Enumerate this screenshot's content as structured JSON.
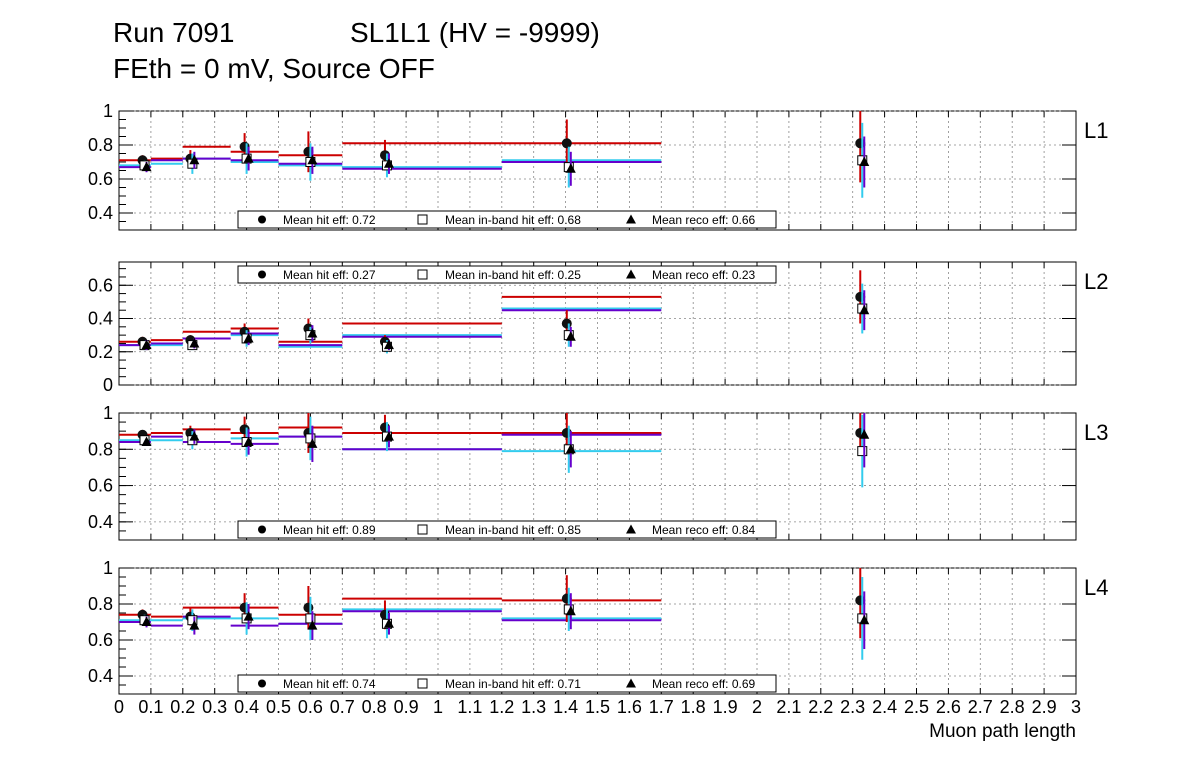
{
  "title_line1_left": "Run 7091",
  "title_line1_right": "SL1L1 (HV = -9999)",
  "title_line2": "FEth = 0 mV, Source OFF",
  "xaxis_title": "Muon path length",
  "x_tick_labels": [
    "0",
    "0.1",
    "0.2",
    "0.3",
    "0.4",
    "0.5",
    "0.6",
    "0.7",
    "0.8",
    "0.9",
    "1",
    "1.1",
    "1.2",
    "1.3",
    "1.4",
    "1.5",
    "1.6",
    "1.7",
    "1.8",
    "1.9",
    "2",
    "2.1",
    "2.2",
    "2.3",
    "2.4",
    "2.5",
    "2.6",
    "2.7",
    "2.8",
    "2.9",
    "3"
  ],
  "colors": {
    "hit": "#cc0000",
    "inband": "#33ccee",
    "reco": "#6600cc",
    "frame": "#000000",
    "grid": "#888888"
  },
  "legend_labels": {
    "hit": "Mean hit  eff: ",
    "inband": "Mean in-band hit eff: ",
    "reco": "Mean reco eff: "
  },
  "chart_data": [
    {
      "type": "scatter",
      "label": "L1",
      "xlim": [
        0,
        3
      ],
      "ylim": [
        0.3,
        1.0
      ],
      "y_ticks": [
        0.4,
        0.6,
        0.8,
        1
      ],
      "y_tick_labels": [
        "0.4",
        "0.6",
        "0.8",
        "1"
      ],
      "legend": {
        "position": "bottom",
        "hit": "0.72",
        "inband": "0.68",
        "reco": "0.66"
      },
      "bins": [
        0,
        0.1,
        0.2,
        0.35,
        0.5,
        0.7,
        1.2,
        1.7,
        3.0
      ],
      "points_x": [
        0.08,
        0.23,
        0.4,
        0.6,
        0.84,
        1.41,
        2.33
      ],
      "series": [
        {
          "key": "hit",
          "marker": "circle",
          "values": [
            0.71,
            0.72,
            0.79,
            0.76,
            0.74,
            0.81,
            0.81
          ],
          "errors": [
            0.03,
            0.05,
            0.08,
            0.12,
            0.09,
            0.14,
            0.23
          ]
        },
        {
          "key": "inband",
          "marker": "square",
          "values": [
            0.68,
            0.69,
            0.72,
            0.7,
            0.68,
            0.67,
            0.71
          ],
          "errors": [
            0.03,
            0.06,
            0.09,
            0.11,
            0.07,
            0.12,
            0.22
          ]
        },
        {
          "key": "reco",
          "marker": "triangle",
          "values": [
            0.67,
            0.71,
            0.72,
            0.71,
            0.69,
            0.66,
            0.7
          ],
          "errors": [
            0.03,
            0.05,
            0.07,
            0.08,
            0.06,
            0.1,
            0.15
          ]
        }
      ]
    },
    {
      "type": "scatter",
      "label": "L2",
      "xlim": [
        0,
        3
      ],
      "ylim": [
        0,
        0.74
      ],
      "y_ticks": [
        0,
        0.2,
        0.4,
        0.6
      ],
      "y_tick_labels": [
        "0",
        "0.2",
        "0.4",
        "0.6"
      ],
      "legend": {
        "position": "top",
        "hit": "0.27",
        "inband": "0.25",
        "reco": "0.23"
      },
      "bins": [
        0,
        0.1,
        0.2,
        0.35,
        0.5,
        0.7,
        1.2,
        1.7,
        3.0
      ],
      "points_x": [
        0.08,
        0.23,
        0.4,
        0.6,
        0.84,
        1.41,
        2.33
      ],
      "series": [
        {
          "key": "hit",
          "marker": "circle",
          "values": [
            0.26,
            0.27,
            0.32,
            0.34,
            0.26,
            0.37,
            0.53
          ],
          "errors": [
            0.03,
            0.03,
            0.05,
            0.06,
            0.04,
            0.08,
            0.16
          ]
        },
        {
          "key": "inband",
          "marker": "square",
          "values": [
            0.24,
            0.24,
            0.28,
            0.3,
            0.23,
            0.3,
            0.46
          ],
          "errors": [
            0.03,
            0.03,
            0.05,
            0.05,
            0.04,
            0.07,
            0.15
          ]
        },
        {
          "key": "reco",
          "marker": "triangle",
          "values": [
            0.24,
            0.25,
            0.28,
            0.31,
            0.24,
            0.29,
            0.45
          ],
          "errors": [
            0.03,
            0.03,
            0.04,
            0.05,
            0.03,
            0.06,
            0.12
          ]
        }
      ]
    },
    {
      "type": "scatter",
      "label": "L3",
      "xlim": [
        0,
        3
      ],
      "ylim": [
        0.3,
        1.0
      ],
      "y_ticks": [
        0.4,
        0.6,
        0.8,
        1
      ],
      "y_tick_labels": [
        "0.4",
        "0.6",
        "0.8",
        "1"
      ],
      "legend": {
        "position": "bottom",
        "hit": "0.89",
        "inband": "0.85",
        "reco": "0.84"
      },
      "bins": [
        0,
        0.1,
        0.2,
        0.35,
        0.5,
        0.7,
        1.2,
        1.7,
        3.0
      ],
      "points_x": [
        0.08,
        0.23,
        0.4,
        0.6,
        0.84,
        1.41,
        2.33
      ],
      "series": [
        {
          "key": "hit",
          "marker": "circle",
          "values": [
            0.88,
            0.89,
            0.91,
            0.89,
            0.92,
            0.89,
            0.89
          ],
          "errors": [
            0.02,
            0.04,
            0.07,
            0.11,
            0.07,
            0.11,
            0.12
          ]
        },
        {
          "key": "inband",
          "marker": "square",
          "values": [
            0.85,
            0.85,
            0.84,
            0.86,
            0.87,
            0.8,
            0.79
          ],
          "errors": [
            0.02,
            0.05,
            0.08,
            0.12,
            0.08,
            0.13,
            0.2
          ]
        },
        {
          "key": "reco",
          "marker": "triangle",
          "values": [
            0.84,
            0.87,
            0.84,
            0.83,
            0.87,
            0.8,
            0.88
          ],
          "errors": [
            0.02,
            0.04,
            0.07,
            0.1,
            0.06,
            0.1,
            0.18
          ]
        }
      ]
    },
    {
      "type": "scatter",
      "label": "L4",
      "xlim": [
        0,
        3
      ],
      "ylim": [
        0.3,
        1.0
      ],
      "y_ticks": [
        0.4,
        0.6,
        0.8,
        1
      ],
      "y_tick_labels": [
        "0.4",
        "0.6",
        "0.8",
        "1"
      ],
      "legend": {
        "position": "bottom",
        "hit": "0.74",
        "inband": "0.71",
        "reco": "0.69"
      },
      "bins": [
        0,
        0.1,
        0.2,
        0.35,
        0.5,
        0.7,
        1.2,
        1.7,
        3.0
      ],
      "points_x": [
        0.08,
        0.23,
        0.4,
        0.6,
        0.84,
        1.41,
        2.33
      ],
      "series": [
        {
          "key": "hit",
          "marker": "circle",
          "values": [
            0.74,
            0.73,
            0.78,
            0.78,
            0.74,
            0.83,
            0.82
          ],
          "errors": [
            0.03,
            0.05,
            0.08,
            0.12,
            0.08,
            0.13,
            0.21
          ]
        },
        {
          "key": "inband",
          "marker": "square",
          "values": [
            0.71,
            0.71,
            0.72,
            0.72,
            0.69,
            0.77,
            0.72
          ],
          "errors": [
            0.03,
            0.06,
            0.09,
            0.12,
            0.08,
            0.12,
            0.23
          ]
        },
        {
          "key": "reco",
          "marker": "triangle",
          "values": [
            0.7,
            0.68,
            0.73,
            0.68,
            0.69,
            0.76,
            0.71
          ],
          "errors": [
            0.03,
            0.05,
            0.07,
            0.08,
            0.06,
            0.1,
            0.16
          ]
        }
      ]
    }
  ]
}
